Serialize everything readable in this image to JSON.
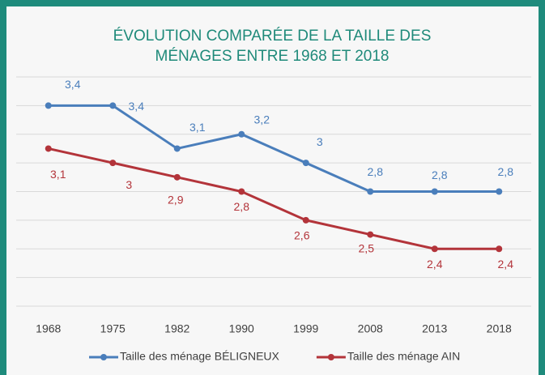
{
  "chart_data": {
    "type": "line",
    "title": [
      "ÉVOLUTION COMPARÉE DE LA TAILLE DES",
      "MÉNAGES ENTRE 1968 ET 2018"
    ],
    "categories": [
      "1968",
      "1975",
      "1982",
      "1990",
      "1999",
      "2008",
      "2013",
      "2018"
    ],
    "ylim": [
      2.0,
      3.6
    ],
    "yticks": [
      2.0,
      2.2,
      2.4,
      2.6,
      2.8,
      3.0,
      3.2,
      3.4,
      3.6
    ],
    "grid": true,
    "legend": "bottom",
    "series": [
      {
        "name": "Taille des ménage BÉLIGNEUX",
        "color": "#4a7ebb",
        "values": [
          3.4,
          3.4,
          3.1,
          3.2,
          3.0,
          2.8,
          2.8,
          2.8
        ],
        "value_labels": [
          "3,4",
          "3,4",
          "3,1",
          "3,2",
          "3",
          "2,8",
          "2,8",
          "2,8"
        ]
      },
      {
        "name": "Taille des ménage AIN",
        "color": "#b3343a",
        "values": [
          3.1,
          3.0,
          2.9,
          2.8,
          2.6,
          2.5,
          2.4,
          2.4
        ],
        "value_labels": [
          "3,1",
          "3",
          "2,9",
          "2,8",
          "2,6",
          "2,5",
          "2,4",
          "2,4"
        ]
      }
    ]
  }
}
